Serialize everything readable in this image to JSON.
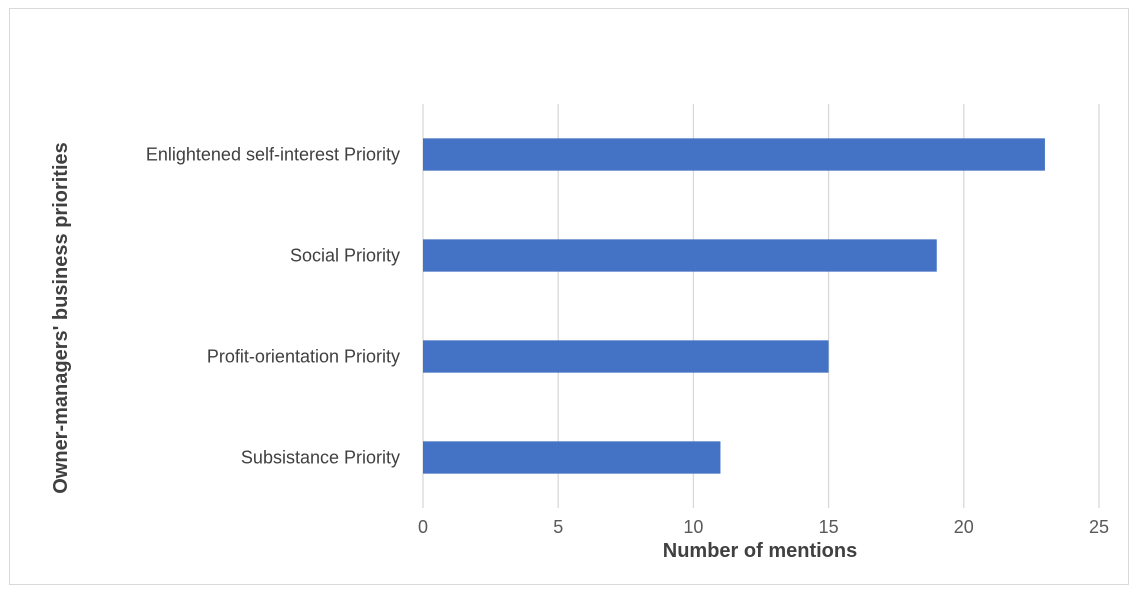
{
  "chart_data": {
    "type": "bar",
    "orientation": "horizontal",
    "categories": [
      "Enlightened self-interest Priority",
      "Social Priority",
      "Profit-orientation Priority",
      "Subsistance Priority"
    ],
    "values": [
      23,
      19,
      15,
      11
    ],
    "xlabel": "Number of mentions",
    "ylabel": "Owner-managers' business priorities",
    "xlim": [
      0,
      25
    ],
    "xticks": [
      "0",
      "5",
      "10",
      "15",
      "20",
      "25"
    ],
    "grid": "vertical",
    "legend": "none",
    "bar_color": "#4472C4",
    "grid_color": "#d9d9d9"
  }
}
